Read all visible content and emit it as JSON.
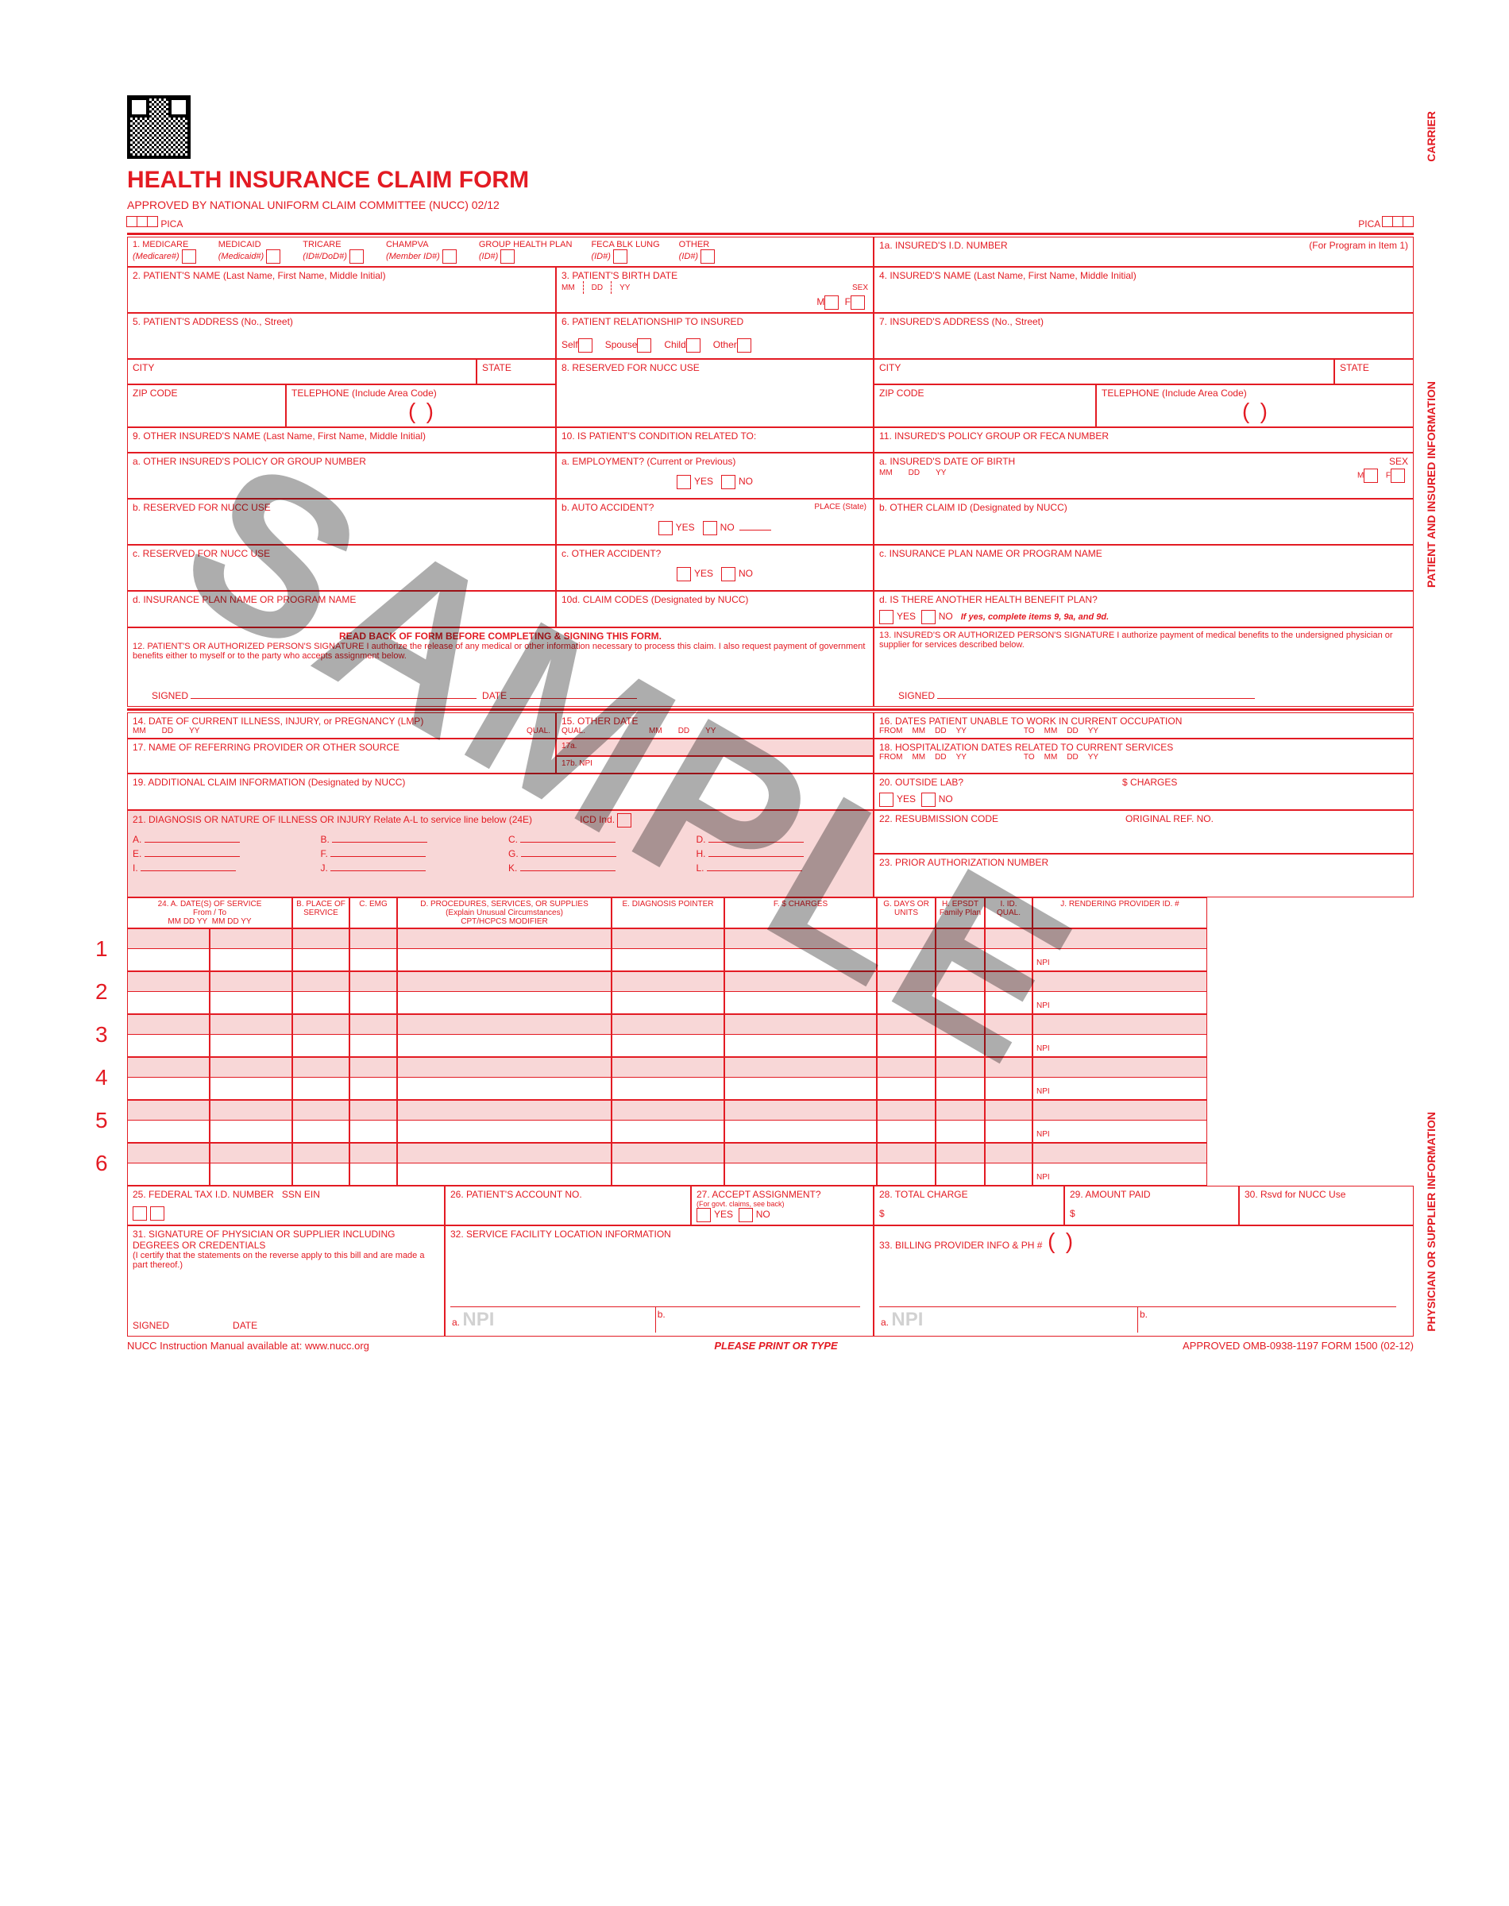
{
  "title": "HEALTH INSURANCE CLAIM FORM",
  "subtitle": "APPROVED BY NATIONAL UNIFORM CLAIM COMMITTEE (NUCC) 02/12",
  "pica": "PICA",
  "watermark": "SAMPLE",
  "colors": {
    "red": "#e31b23",
    "pink": "#f8d7d7",
    "watermark": "rgba(0,0,0,0.32)"
  },
  "insurance_types": [
    {
      "n": "1.",
      "name": "MEDICARE",
      "sub": "(Medicare#)"
    },
    {
      "n": "",
      "name": "MEDICAID",
      "sub": "(Medicaid#)"
    },
    {
      "n": "",
      "name": "TRICARE",
      "sub": "(ID#/DoD#)"
    },
    {
      "n": "",
      "name": "CHAMPVA",
      "sub": "(Member ID#)"
    },
    {
      "n": "",
      "name": "GROUP HEALTH PLAN",
      "sub": "(ID#)"
    },
    {
      "n": "",
      "name": "FECA BLK LUNG",
      "sub": "(ID#)"
    },
    {
      "n": "",
      "name": "OTHER",
      "sub": "(ID#)"
    }
  ],
  "f1a": {
    "label": "1a. INSURED'S I.D. NUMBER",
    "extra": "(For Program in Item 1)"
  },
  "f2": "2. PATIENT'S NAME (Last Name, First Name, Middle Initial)",
  "f3": {
    "label": "3. PATIENT'S BIRTH DATE",
    "mm": "MM",
    "dd": "DD",
    "yy": "YY",
    "sex": "SEX",
    "m": "M",
    "f": "F"
  },
  "f4": "4. INSURED'S NAME (Last Name, First Name, Middle Initial)",
  "f5": "5. PATIENT'S ADDRESS (No., Street)",
  "f6": {
    "label": "6. PATIENT RELATIONSHIP TO INSURED",
    "opts": [
      "Self",
      "Spouse",
      "Child",
      "Other"
    ]
  },
  "f7": "7. INSURED'S ADDRESS (No., Street)",
  "city": "CITY",
  "state": "STATE",
  "zip": "ZIP CODE",
  "tel": "TELEPHONE (Include Area Code)",
  "f8": "8. RESERVED FOR NUCC USE",
  "f9": "9. OTHER INSURED'S NAME (Last Name, First Name, Middle Initial)",
  "f9a": "a. OTHER INSURED'S POLICY OR GROUP NUMBER",
  "f9b": "b. RESERVED FOR NUCC USE",
  "f9c": "c. RESERVED FOR NUCC USE",
  "f9d": "d. INSURANCE PLAN NAME OR PROGRAM NAME",
  "f10": "10. IS PATIENT'S CONDITION RELATED TO:",
  "f10a": "a. EMPLOYMENT? (Current or Previous)",
  "f10b": "b. AUTO ACCIDENT?",
  "f10b_place": "PLACE (State)",
  "f10c": "c. OTHER ACCIDENT?",
  "f10d": "10d. CLAIM CODES (Designated by NUCC)",
  "yes": "YES",
  "no": "NO",
  "f11": "11. INSURED'S POLICY GROUP OR FECA NUMBER",
  "f11a": {
    "label": "a. INSURED'S DATE OF BIRTH",
    "sex": "SEX"
  },
  "f11b": "b. OTHER CLAIM ID (Designated by NUCC)",
  "f11c": "c. INSURANCE PLAN NAME OR PROGRAM NAME",
  "f11d": {
    "label": "d. IS THERE ANOTHER HEALTH BENEFIT PLAN?",
    "note": "If yes, complete items 9, 9a, and 9d."
  },
  "readback": "READ BACK OF FORM BEFORE COMPLETING & SIGNING THIS FORM.",
  "f12": "12. PATIENT'S OR AUTHORIZED PERSON'S SIGNATURE I authorize the release of any medical or other information necessary to process this claim. I also request payment of government benefits either to myself or to the party who accepts assignment below.",
  "f13": "13. INSURED'S OR AUTHORIZED PERSON'S SIGNATURE I authorize payment of medical benefits to the undersigned physician or supplier for services described below.",
  "signed": "SIGNED",
  "date": "DATE",
  "f14": {
    "label": "14. DATE OF CURRENT ILLNESS, INJURY, or PREGNANCY (LMP)",
    "qual": "QUAL."
  },
  "f15": {
    "label": "15. OTHER DATE",
    "qual": "QUAL."
  },
  "f16": {
    "label": "16. DATES PATIENT UNABLE TO WORK IN CURRENT OCCUPATION",
    "from": "FROM",
    "to": "TO"
  },
  "f17": "17. NAME OF REFERRING PROVIDER OR OTHER SOURCE",
  "f17a": "17a.",
  "f17b": "17b.",
  "npi": "NPI",
  "f18": {
    "label": "18. HOSPITALIZATION DATES RELATED TO CURRENT SERVICES",
    "from": "FROM",
    "to": "TO"
  },
  "f19": "19. ADDITIONAL CLAIM INFORMATION (Designated by NUCC)",
  "f20": {
    "label": "20. OUTSIDE LAB?",
    "charges": "$ CHARGES"
  },
  "f21": {
    "label": "21. DIAGNOSIS OR NATURE OF ILLNESS OR INJURY  Relate A-L to service line below (24E)",
    "icd": "ICD Ind."
  },
  "f21_letters": [
    "A.",
    "B.",
    "C.",
    "D.",
    "E.",
    "F.",
    "G.",
    "H.",
    "I.",
    "J.",
    "K.",
    "L."
  ],
  "f22": {
    "label": "22. RESUBMISSION CODE",
    "orig": "ORIGINAL REF. NO."
  },
  "f23": "23. PRIOR AUTHORIZATION NUMBER",
  "f24_headers": {
    "a": "24. A.    DATE(S) OF SERVICE",
    "from": "From",
    "to": "To",
    "mmddyy": "MM    DD    YY",
    "b": "B. PLACE OF SERVICE",
    "c": "C. EMG",
    "d": "D. PROCEDURES, SERVICES, OR SUPPLIES",
    "d2": "(Explain Unusual Circumstances)",
    "d3": "CPT/HCPCS            MODIFIER",
    "e": "E. DIAGNOSIS POINTER",
    "f": "F. $ CHARGES",
    "g": "G. DAYS OR UNITS",
    "h": "H. EPSDT Family Plan",
    "i": "I. ID. QUAL.",
    "j": "J. RENDERING PROVIDER ID. #"
  },
  "f25": {
    "label": "25. FEDERAL TAX I.D. NUMBER",
    "ssn": "SSN",
    "ein": "EIN"
  },
  "f26": "26. PATIENT'S ACCOUNT NO.",
  "f27": {
    "label": "27. ACCEPT ASSIGNMENT?",
    "sub": "(For govt. claims, see back)"
  },
  "f28": "28. TOTAL CHARGE",
  "f29": "29. AMOUNT PAID",
  "f30": "30. Rsvd for NUCC Use",
  "f31": {
    "label": "31. SIGNATURE OF PHYSICIAN OR SUPPLIER INCLUDING DEGREES OR CREDENTIALS",
    "sub": "(I certify that the statements on the reverse apply to this bill and are made a part thereof.)"
  },
  "f32": "32. SERVICE FACILITY LOCATION INFORMATION",
  "f33": "33. BILLING PROVIDER INFO & PH #",
  "footer_left": "NUCC Instruction Manual available at: www.nucc.org",
  "footer_mid": "PLEASE PRINT OR TYPE",
  "footer_right": "APPROVED OMB-0938-1197 FORM 1500 (02-12)",
  "vert": {
    "carrier": "CARRIER",
    "patient": "PATIENT AND INSURED INFORMATION",
    "physician": "PHYSICIAN OR SUPPLIER INFORMATION"
  },
  "dollar": "$",
  "a": "a.",
  "b": "b."
}
